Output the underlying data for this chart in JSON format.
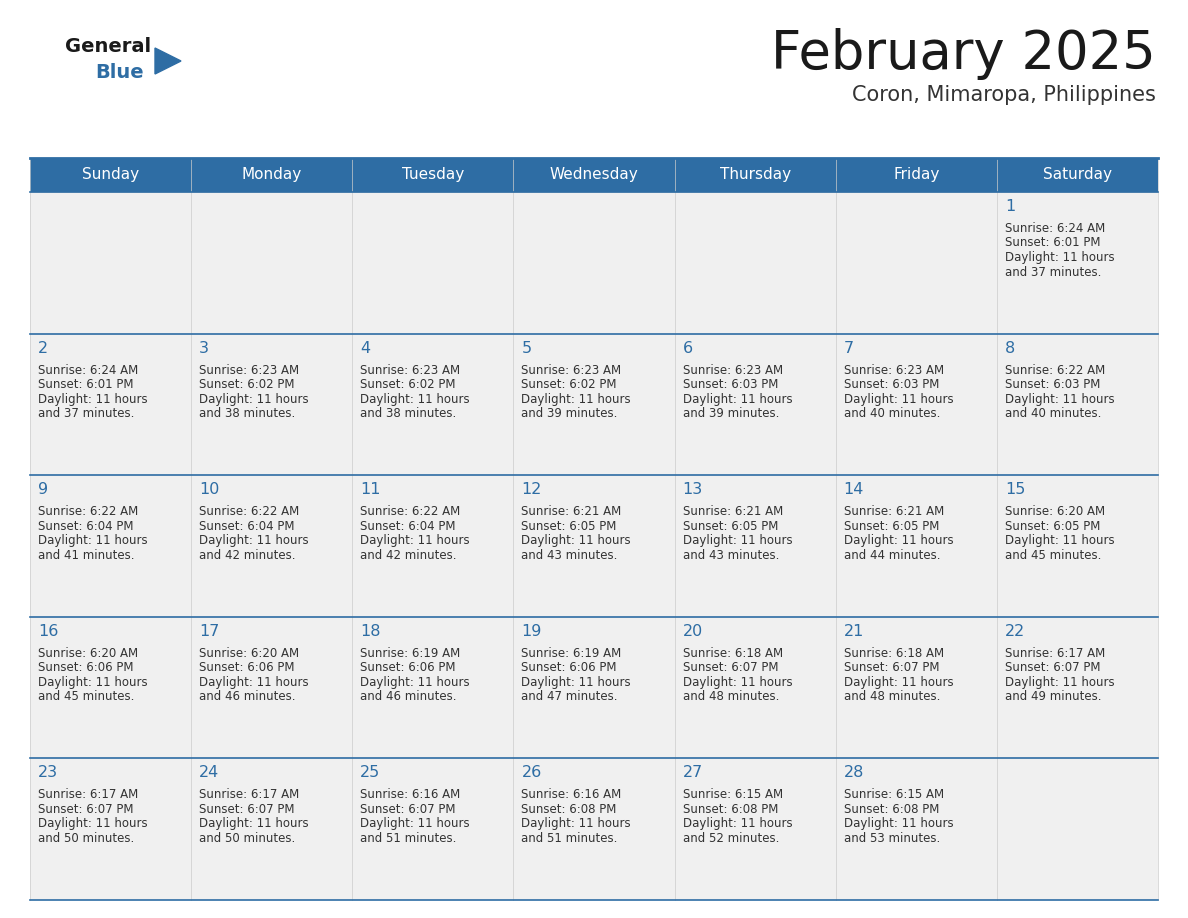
{
  "title": "February 2025",
  "subtitle": "Coron, Mimaropa, Philippines",
  "days_of_week": [
    "Sunday",
    "Monday",
    "Tuesday",
    "Wednesday",
    "Thursday",
    "Friday",
    "Saturday"
  ],
  "header_bg": "#2E6DA4",
  "header_text": "#FFFFFF",
  "cell_bg": "#F0F0F0",
  "border_color": "#2E6DA4",
  "title_color": "#1a1a1a",
  "subtitle_color": "#333333",
  "day_number_color": "#2E6DA4",
  "cell_text_color": "#333333",
  "logo_general_color": "#1a1a1a",
  "logo_blue_color": "#2E6DA4",
  "logo_triangle_color": "#2E6DA4",
  "calendar_data": [
    [
      null,
      null,
      null,
      null,
      null,
      null,
      {
        "day": "1",
        "sunrise": "6:24 AM",
        "sunset": "6:01 PM",
        "daylight": "11 hours and 37 minutes."
      }
    ],
    [
      {
        "day": "2",
        "sunrise": "6:24 AM",
        "sunset": "6:01 PM",
        "daylight": "11 hours and 37 minutes."
      },
      {
        "day": "3",
        "sunrise": "6:23 AM",
        "sunset": "6:02 PM",
        "daylight": "11 hours and 38 minutes."
      },
      {
        "day": "4",
        "sunrise": "6:23 AM",
        "sunset": "6:02 PM",
        "daylight": "11 hours and 38 minutes."
      },
      {
        "day": "5",
        "sunrise": "6:23 AM",
        "sunset": "6:02 PM",
        "daylight": "11 hours and 39 minutes."
      },
      {
        "day": "6",
        "sunrise": "6:23 AM",
        "sunset": "6:03 PM",
        "daylight": "11 hours and 39 minutes."
      },
      {
        "day": "7",
        "sunrise": "6:23 AM",
        "sunset": "6:03 PM",
        "daylight": "11 hours and 40 minutes."
      },
      {
        "day": "8",
        "sunrise": "6:22 AM",
        "sunset": "6:03 PM",
        "daylight": "11 hours and 40 minutes."
      }
    ],
    [
      {
        "day": "9",
        "sunrise": "6:22 AM",
        "sunset": "6:04 PM",
        "daylight": "11 hours and 41 minutes."
      },
      {
        "day": "10",
        "sunrise": "6:22 AM",
        "sunset": "6:04 PM",
        "daylight": "11 hours and 42 minutes."
      },
      {
        "day": "11",
        "sunrise": "6:22 AM",
        "sunset": "6:04 PM",
        "daylight": "11 hours and 42 minutes."
      },
      {
        "day": "12",
        "sunrise": "6:21 AM",
        "sunset": "6:05 PM",
        "daylight": "11 hours and 43 minutes."
      },
      {
        "day": "13",
        "sunrise": "6:21 AM",
        "sunset": "6:05 PM",
        "daylight": "11 hours and 43 minutes."
      },
      {
        "day": "14",
        "sunrise": "6:21 AM",
        "sunset": "6:05 PM",
        "daylight": "11 hours and 44 minutes."
      },
      {
        "day": "15",
        "sunrise": "6:20 AM",
        "sunset": "6:05 PM",
        "daylight": "11 hours and 45 minutes."
      }
    ],
    [
      {
        "day": "16",
        "sunrise": "6:20 AM",
        "sunset": "6:06 PM",
        "daylight": "11 hours and 45 minutes."
      },
      {
        "day": "17",
        "sunrise": "6:20 AM",
        "sunset": "6:06 PM",
        "daylight": "11 hours and 46 minutes."
      },
      {
        "day": "18",
        "sunrise": "6:19 AM",
        "sunset": "6:06 PM",
        "daylight": "11 hours and 46 minutes."
      },
      {
        "day": "19",
        "sunrise": "6:19 AM",
        "sunset": "6:06 PM",
        "daylight": "11 hours and 47 minutes."
      },
      {
        "day": "20",
        "sunrise": "6:18 AM",
        "sunset": "6:07 PM",
        "daylight": "11 hours and 48 minutes."
      },
      {
        "day": "21",
        "sunrise": "6:18 AM",
        "sunset": "6:07 PM",
        "daylight": "11 hours and 48 minutes."
      },
      {
        "day": "22",
        "sunrise": "6:17 AM",
        "sunset": "6:07 PM",
        "daylight": "11 hours and 49 minutes."
      }
    ],
    [
      {
        "day": "23",
        "sunrise": "6:17 AM",
        "sunset": "6:07 PM",
        "daylight": "11 hours and 50 minutes."
      },
      {
        "day": "24",
        "sunrise": "6:17 AM",
        "sunset": "6:07 PM",
        "daylight": "11 hours and 50 minutes."
      },
      {
        "day": "25",
        "sunrise": "6:16 AM",
        "sunset": "6:07 PM",
        "daylight": "11 hours and 51 minutes."
      },
      {
        "day": "26",
        "sunrise": "6:16 AM",
        "sunset": "6:08 PM",
        "daylight": "11 hours and 51 minutes."
      },
      {
        "day": "27",
        "sunrise": "6:15 AM",
        "sunset": "6:08 PM",
        "daylight": "11 hours and 52 minutes."
      },
      {
        "day": "28",
        "sunrise": "6:15 AM",
        "sunset": "6:08 PM",
        "daylight": "11 hours and 53 minutes."
      },
      null
    ]
  ]
}
